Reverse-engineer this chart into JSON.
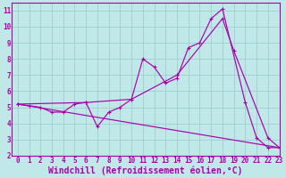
{
  "background_color": "#c0e8e8",
  "grid_color": "#9ecece",
  "line_color": "#aa00aa",
  "xlim": [
    -0.5,
    23
  ],
  "ylim": [
    2,
    11.5
  ],
  "xticks": [
    0,
    1,
    2,
    3,
    4,
    5,
    6,
    7,
    8,
    9,
    10,
    11,
    12,
    13,
    14,
    15,
    16,
    17,
    18,
    19,
    20,
    21,
    22,
    23
  ],
  "yticks": [
    2,
    3,
    4,
    5,
    6,
    7,
    8,
    9,
    10,
    11
  ],
  "xlabel": "Windchill (Refroidissement éolien,°C)",
  "series1_x": [
    0,
    1,
    2,
    3,
    4,
    5,
    6,
    7,
    8,
    9,
    10,
    11,
    12,
    13,
    14,
    15,
    16,
    17,
    18,
    20,
    21,
    22,
    23
  ],
  "series1_y": [
    5.2,
    5.1,
    5.0,
    4.7,
    4.7,
    5.2,
    5.3,
    3.8,
    4.7,
    5.0,
    5.5,
    8.0,
    7.5,
    6.5,
    6.8,
    8.7,
    9.0,
    10.5,
    11.1,
    5.3,
    3.1,
    2.5,
    2.5
  ],
  "series2_x": [
    0,
    23
  ],
  "series2_y": [
    5.2,
    2.5
  ],
  "series3_x": [
    0,
    6,
    10,
    14,
    18,
    19,
    22,
    23
  ],
  "series3_y": [
    5.2,
    5.3,
    5.5,
    7.0,
    10.5,
    8.5,
    3.1,
    2.5
  ],
  "tick_fontsize": 5.5,
  "xlabel_fontsize": 7.0,
  "spine_color": "#aa00aa"
}
